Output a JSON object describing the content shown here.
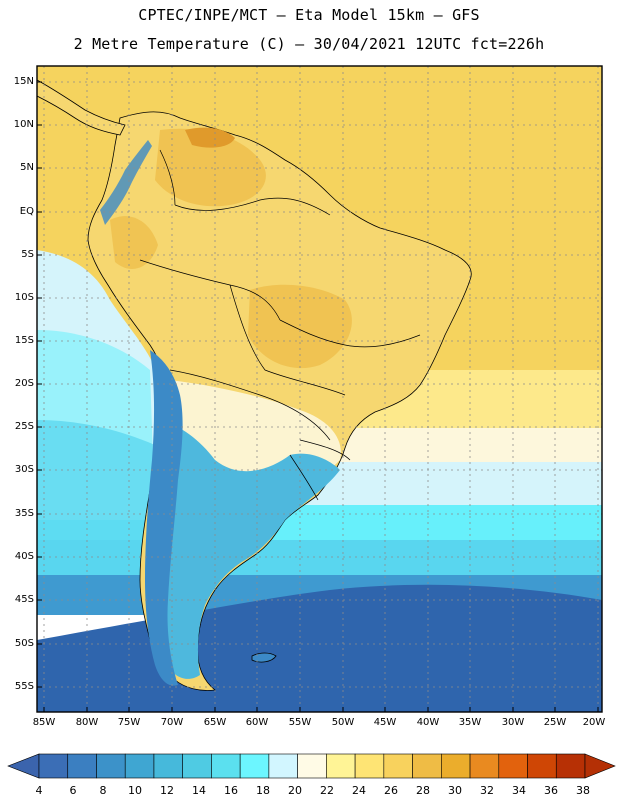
{
  "titles": {
    "line1": "CPTEC/INPE/MCT –  Eta Model 15km – GFS",
    "line2": "2 Metre Temperature (C) – 30/04/2021 12UTC fct=226h"
  },
  "latitude_labels": [
    "15N",
    "10N",
    "5N",
    "EQ",
    "5S",
    "10S",
    "15S",
    "20S",
    "25S",
    "30S",
    "35S",
    "40S",
    "45S",
    "50S",
    "55S"
  ],
  "longitude_labels": [
    "85W",
    "80W",
    "75W",
    "70W",
    "65W",
    "60W",
    "55W",
    "50W",
    "45W",
    "40W",
    "35W",
    "30W",
    "25W",
    "20W"
  ],
  "colorbar": {
    "labels": [
      "4",
      "6",
      "8",
      "10",
      "12",
      "14",
      "16",
      "18",
      "20",
      "22",
      "24",
      "26",
      "28",
      "30",
      "32",
      "34",
      "36",
      "38"
    ],
    "colors": [
      "#3b6eb6",
      "#3b7fc1",
      "#3c92c9",
      "#3fa6d2",
      "#46b9db",
      "#4fcbe3",
      "#5be0ef",
      "#6cf6ff",
      "#d2f6ff",
      "#fffbe6",
      "#fff496",
      "#fee474",
      "#f8d25d",
      "#efbc45",
      "#ebad2c",
      "#e98a20",
      "#e2620d",
      "#cf4605",
      "#b73005"
    ],
    "low_color": "#3b64ad",
    "high_color": "#b43005"
  },
  "field_colors": {
    "ocean_south": "#2f65ad",
    "ocean_mid": "#3f9ad0",
    "ocean_cool": "#59d6ef",
    "ocean_cyan": "#67f0fb",
    "ocean_pale": "#d5f4fb",
    "ocean_cream": "#fdf7dc",
    "ocean_warm": "#fde98b",
    "ocean_tropic": "#f5d35e",
    "land_warm": "#f6d770",
    "land_hot": "#efbf4c",
    "hot_spot": "#e09a2b",
    "andes": "#3c8ac7",
    "patagonia": "#4eb8dd"
  }
}
